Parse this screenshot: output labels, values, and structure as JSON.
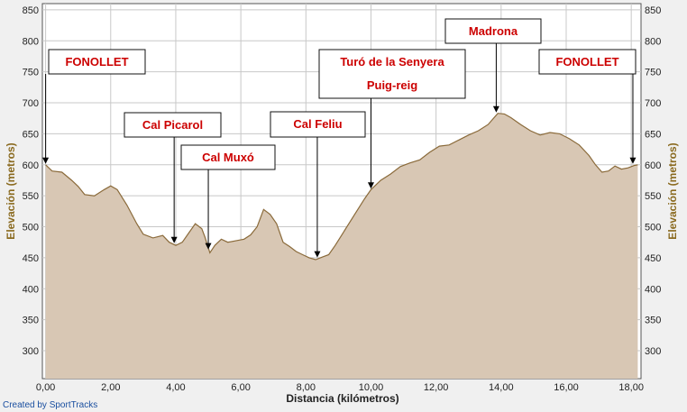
{
  "chart_data": {
    "type": "area",
    "xlabel": "Distancia (kilómetros)",
    "ylabel_left": "Elevación (metros)",
    "ylabel_right": "Elevación (metros)",
    "xlim": [
      -0.1,
      18.3
    ],
    "ylim": [
      255,
      860
    ],
    "x_ticks": [
      "0,00",
      "2,00",
      "4,00",
      "6,00",
      "8,00",
      "10,00",
      "12,00",
      "14,00",
      "16,00",
      "18,00"
    ],
    "x_tick_values": [
      0,
      2,
      4,
      6,
      8,
      10,
      12,
      14,
      16,
      18
    ],
    "y_ticks": [
      "300",
      "350",
      "400",
      "450",
      "500",
      "550",
      "600",
      "650",
      "700",
      "750",
      "800",
      "850"
    ],
    "y_tick_values": [
      300,
      350,
      400,
      450,
      500,
      550,
      600,
      650,
      700,
      750,
      800,
      850
    ],
    "grid": true,
    "colors": {
      "fill": "#d8c7b4",
      "line": "#8a6a3a",
      "axis_title": "#8a6a1f",
      "label_text": "#cc0000",
      "plot_bg": "#ffffff",
      "grid": "#c8c8c8"
    },
    "series": [
      {
        "points": [
          [
            0.0,
            600
          ],
          [
            0.2,
            590
          ],
          [
            0.5,
            588
          ],
          [
            0.8,
            575
          ],
          [
            1.0,
            565
          ],
          [
            1.2,
            552
          ],
          [
            1.5,
            550
          ],
          [
            1.8,
            560
          ],
          [
            2.0,
            566
          ],
          [
            2.2,
            560
          ],
          [
            2.5,
            535
          ],
          [
            2.8,
            505
          ],
          [
            3.0,
            488
          ],
          [
            3.3,
            482
          ],
          [
            3.6,
            486
          ],
          [
            3.8,
            475
          ],
          [
            4.0,
            470
          ],
          [
            4.2,
            475
          ],
          [
            4.4,
            490
          ],
          [
            4.6,
            505
          ],
          [
            4.8,
            497
          ],
          [
            4.9,
            483
          ],
          [
            5.05,
            458
          ],
          [
            5.2,
            470
          ],
          [
            5.4,
            480
          ],
          [
            5.6,
            475
          ],
          [
            5.9,
            478
          ],
          [
            6.1,
            480
          ],
          [
            6.3,
            487
          ],
          [
            6.5,
            500
          ],
          [
            6.7,
            528
          ],
          [
            6.9,
            520
          ],
          [
            7.1,
            505
          ],
          [
            7.3,
            475
          ],
          [
            7.5,
            468
          ],
          [
            7.7,
            460
          ],
          [
            7.9,
            455
          ],
          [
            8.1,
            450
          ],
          [
            8.3,
            447
          ],
          [
            8.5,
            451
          ],
          [
            8.7,
            455
          ],
          [
            8.9,
            470
          ],
          [
            9.2,
            495
          ],
          [
            9.5,
            520
          ],
          [
            9.8,
            545
          ],
          [
            10.0,
            560
          ],
          [
            10.3,
            575
          ],
          [
            10.6,
            585
          ],
          [
            10.9,
            597
          ],
          [
            11.2,
            603
          ],
          [
            11.5,
            608
          ],
          [
            11.8,
            620
          ],
          [
            12.1,
            630
          ],
          [
            12.4,
            632
          ],
          [
            12.7,
            640
          ],
          [
            13.0,
            648
          ],
          [
            13.3,
            655
          ],
          [
            13.6,
            665
          ],
          [
            13.9,
            683
          ],
          [
            14.1,
            682
          ],
          [
            14.3,
            676
          ],
          [
            14.6,
            665
          ],
          [
            14.9,
            655
          ],
          [
            15.2,
            648
          ],
          [
            15.5,
            652
          ],
          [
            15.8,
            650
          ],
          [
            16.1,
            642
          ],
          [
            16.4,
            632
          ],
          [
            16.7,
            615
          ],
          [
            16.9,
            600
          ],
          [
            17.1,
            588
          ],
          [
            17.3,
            590
          ],
          [
            17.5,
            598
          ],
          [
            17.7,
            593
          ],
          [
            17.9,
            595
          ],
          [
            18.1,
            599
          ],
          [
            18.2,
            600
          ]
        ]
      }
    ],
    "annotations": [
      {
        "lines": [
          "FONOLLET"
        ],
        "x": 0.0,
        "y": 600
      },
      {
        "lines": [
          "Cal Picarol"
        ],
        "x": 3.95,
        "y": 472
      },
      {
        "lines": [
          "Cal Muxó"
        ],
        "x": 5.0,
        "y": 462
      },
      {
        "lines": [
          "Cal Feliu"
        ],
        "x": 8.35,
        "y": 449
      },
      {
        "lines": [
          "Turó de la Senyera",
          "Puig-reig"
        ],
        "x": 10.0,
        "y": 560
      },
      {
        "lines": [
          "Madrona"
        ],
        "x": 13.85,
        "y": 683
      },
      {
        "lines": [
          "FONOLLET"
        ],
        "x": 18.05,
        "y": 600
      }
    ],
    "credit": "Created by SportTracks"
  }
}
